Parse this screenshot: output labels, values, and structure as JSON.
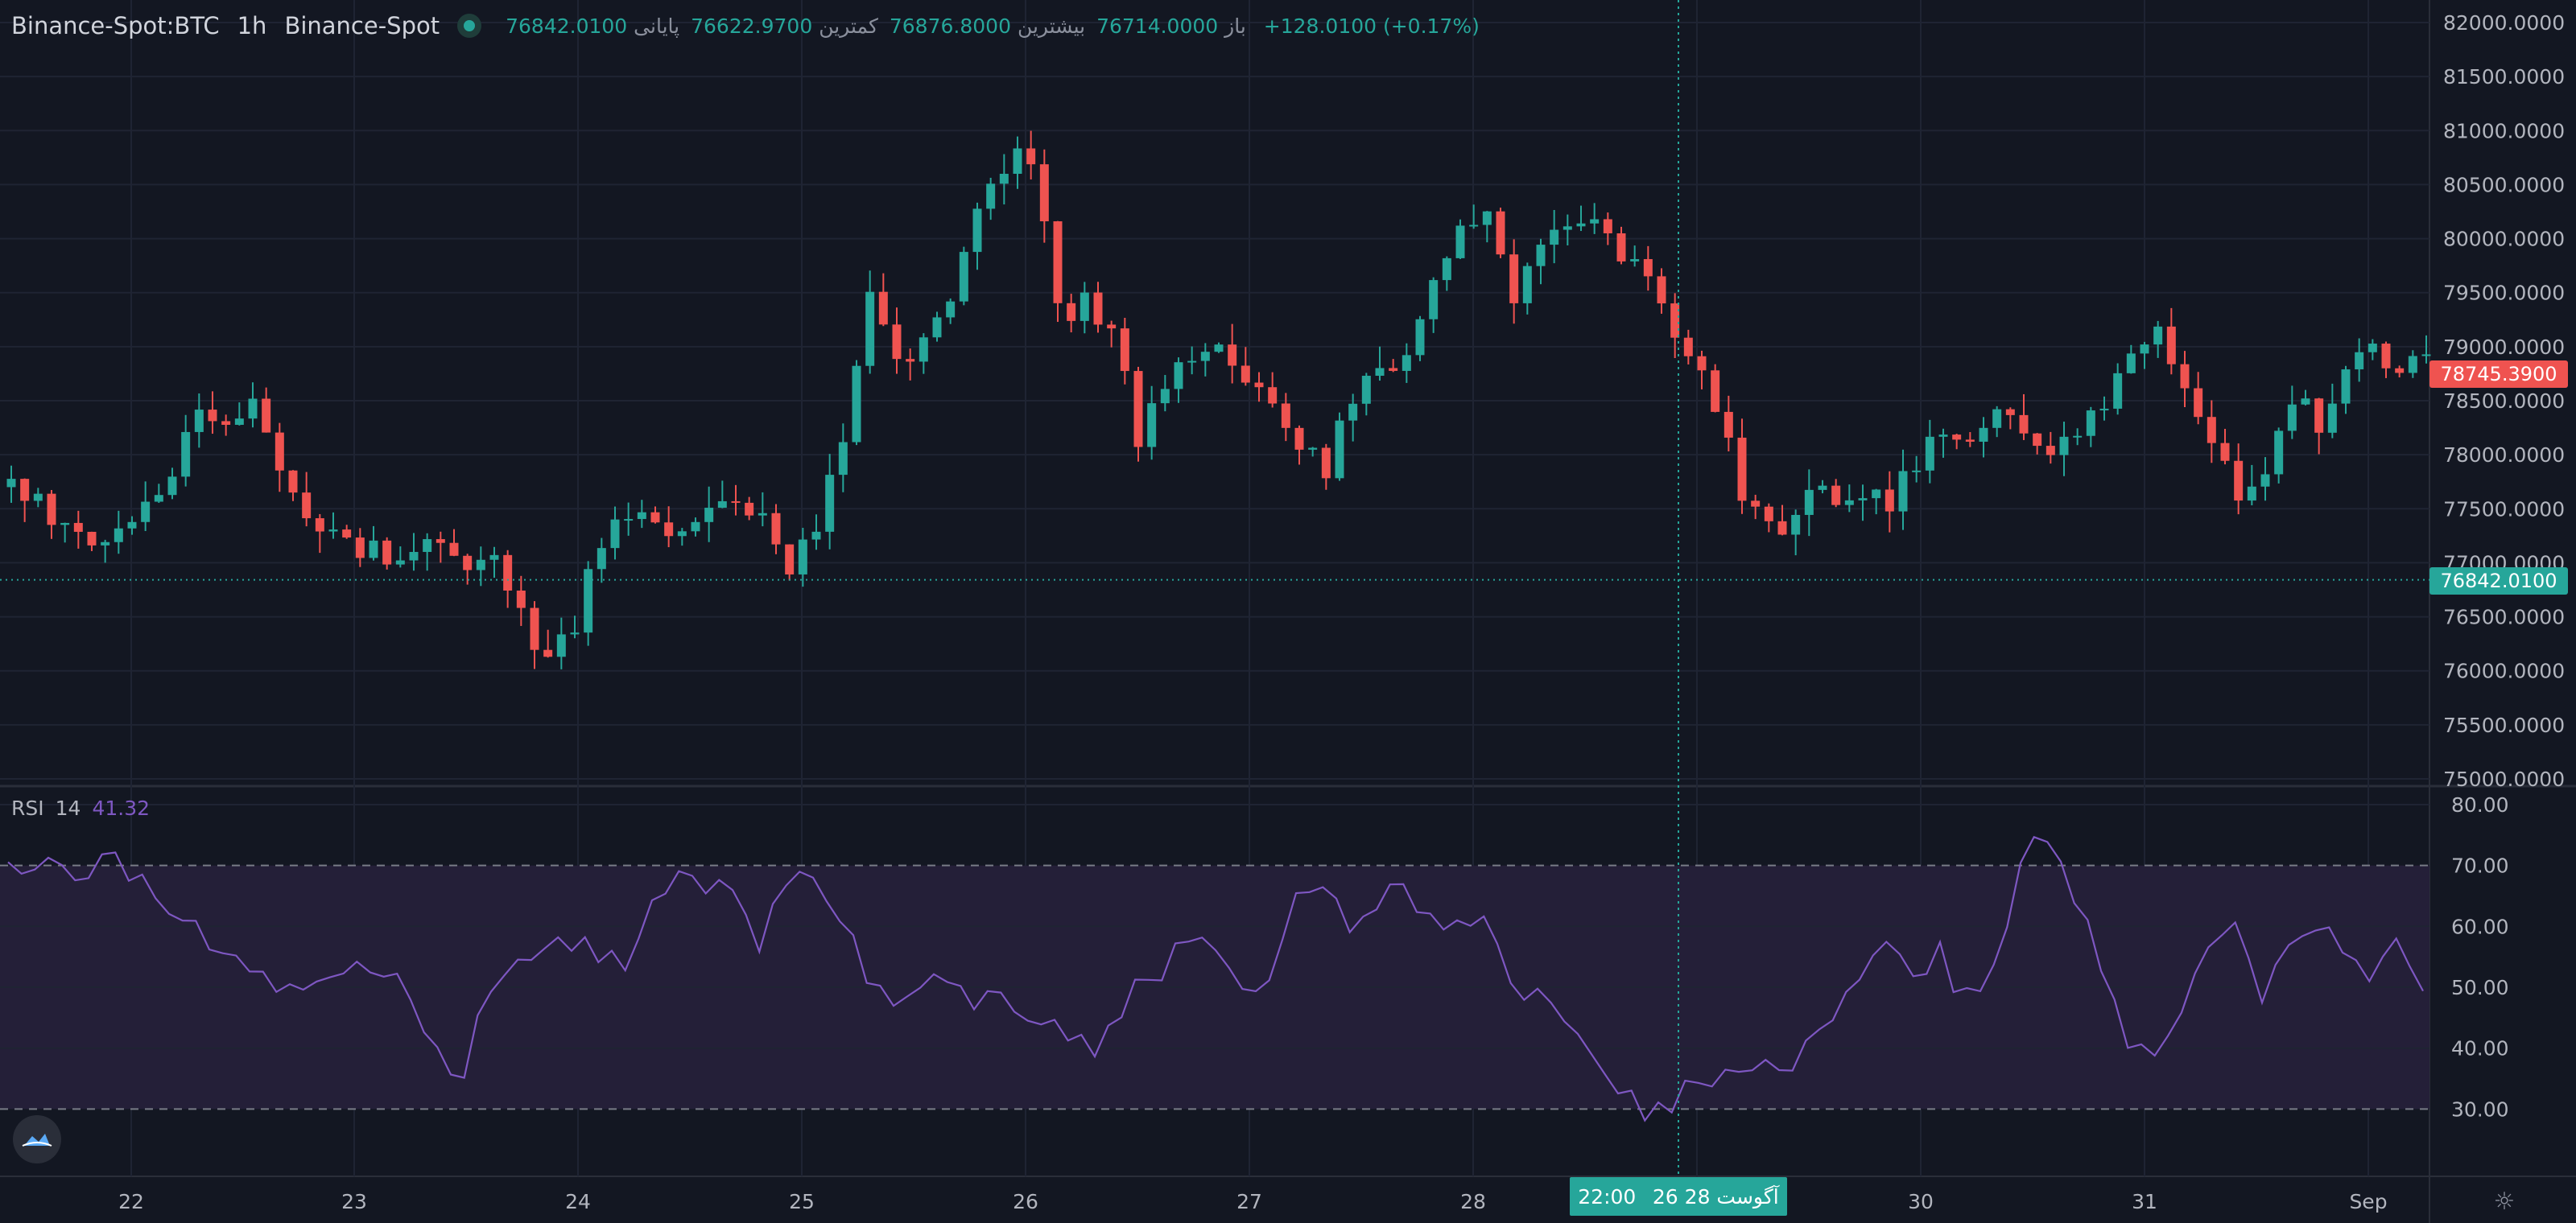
{
  "legend": {
    "symbol": "Binance-Spot:BTC",
    "interval": "1h",
    "exchange": "Binance-Spot",
    "status_dot": "live-status-dot",
    "open_label": "باز",
    "open": "76714.0000",
    "high_label": "بیشترین",
    "high": "76876.8000",
    "low_label": "کمترین",
    "low": "76622.9700",
    "close_label": "پایانی",
    "close": "76842.0100",
    "change": "+128.0100 (+0.17%)"
  },
  "rsi_legend": {
    "name": "RSI",
    "period": "14",
    "value": "41.32"
  },
  "price_tags": {
    "current": "78745.3900",
    "last": "76842.0100"
  },
  "crosshair": {
    "time": "22:00",
    "date": "26 آگوست 28"
  },
  "colors": {
    "up": "#26a69a",
    "down": "#ef5350",
    "rsi": "#7e57c2",
    "background": "#131722",
    "rsi_band": "#241f38"
  },
  "icons": {
    "logo": "tradingview-cloud-logo",
    "settings": "gear-icon"
  },
  "chart_data": [
    {
      "type": "candlestick",
      "title": "",
      "ylim": [
        75000,
        82000
      ],
      "y_ticks": [
        "75000.0000",
        "75500.0000",
        "76000.0000",
        "76500.0000",
        "77000.0000",
        "77500.0000",
        "78000.0000",
        "78500.0000",
        "79000.0000",
        "79500.0000",
        "80000.0000",
        "80500.0000",
        "81000.0000",
        "81500.0000",
        "82000.0000"
      ],
      "x_labels": [
        "22",
        "23",
        "24",
        "25",
        "26",
        "27",
        "28",
        "29",
        "30",
        "31",
        "Sep"
      ],
      "close_path": [
        [
          0,
          77700
        ],
        [
          6,
          77200
        ],
        [
          10,
          77500
        ],
        [
          14,
          78300
        ],
        [
          18,
          78450
        ],
        [
          20,
          77800
        ],
        [
          24,
          77200
        ],
        [
          28,
          77100
        ],
        [
          32,
          77200
        ],
        [
          34,
          76900
        ],
        [
          36,
          76950
        ],
        [
          38,
          76600
        ],
        [
          40,
          76000
        ],
        [
          42,
          76450
        ],
        [
          44,
          77200
        ],
        [
          46,
          77400
        ],
        [
          50,
          77300
        ],
        [
          54,
          77600
        ],
        [
          56,
          77400
        ],
        [
          58,
          76950
        ],
        [
          60,
          77300
        ],
        [
          62,
          78200
        ],
        [
          64,
          79400
        ],
        [
          66,
          78800
        ],
        [
          68,
          79000
        ],
        [
          70,
          79300
        ],
        [
          72,
          80400
        ],
        [
          74,
          80700
        ],
        [
          76,
          80800
        ],
        [
          78,
          79300
        ],
        [
          80,
          79400
        ],
        [
          82,
          79200
        ],
        [
          84,
          78100
        ],
        [
          86,
          78700
        ],
        [
          88,
          78900
        ],
        [
          90,
          79000
        ],
        [
          92,
          78700
        ],
        [
          94,
          78400
        ],
        [
          96,
          78100
        ],
        [
          98,
          77900
        ],
        [
          100,
          78500
        ],
        [
          102,
          78900
        ],
        [
          104,
          78800
        ],
        [
          106,
          79500
        ],
        [
          108,
          80000
        ],
        [
          110,
          80300
        ],
        [
          112,
          79500
        ],
        [
          114,
          79900
        ],
        [
          116,
          80200
        ],
        [
          118,
          80300
        ],
        [
          120,
          79800
        ],
        [
          122,
          79600
        ],
        [
          124,
          79100
        ],
        [
          126,
          78800
        ],
        [
          128,
          78200
        ],
        [
          129,
          77700
        ],
        [
          130,
          77500
        ],
        [
          132,
          77200
        ],
        [
          134,
          77800
        ],
        [
          136,
          77600
        ],
        [
          138,
          77500
        ],
        [
          140,
          77600
        ],
        [
          144,
          78200
        ],
        [
          148,
          78300
        ],
        [
          152,
          78100
        ],
        [
          156,
          78400
        ],
        [
          158,
          78900
        ],
        [
          160,
          79200
        ],
        [
          162,
          78700
        ],
        [
          164,
          78100
        ],
        [
          166,
          77600
        ],
        [
          168,
          77900
        ],
        [
          170,
          78500
        ],
        [
          172,
          78300
        ],
        [
          174,
          78800
        ],
        [
          176,
          79000
        ],
        [
          178,
          78700
        ],
        [
          180,
          78900
        ]
      ],
      "series": [
        {
          "name": "BTC"
        }
      ]
    },
    {
      "type": "line",
      "title": "RSI 14",
      "ylim": [
        20,
        80
      ],
      "y_ticks": [
        "30.00",
        "40.00",
        "50.00",
        "60.00",
        "70.00",
        "80.00"
      ],
      "levels": [
        30,
        70
      ],
      "path": [
        [
          0,
          72
        ],
        [
          4,
          68
        ],
        [
          8,
          71
        ],
        [
          12,
          62
        ],
        [
          16,
          55
        ],
        [
          20,
          50
        ],
        [
          24,
          52
        ],
        [
          28,
          52
        ],
        [
          30,
          48
        ],
        [
          32,
          40
        ],
        [
          34,
          36
        ],
        [
          36,
          50
        ],
        [
          38,
          57
        ],
        [
          40,
          55
        ],
        [
          42,
          58
        ],
        [
          44,
          56
        ],
        [
          46,
          52
        ],
        [
          48,
          64
        ],
        [
          50,
          70
        ],
        [
          52,
          64
        ],
        [
          54,
          67
        ],
        [
          56,
          58
        ],
        [
          58,
          67
        ],
        [
          60,
          70
        ],
        [
          62,
          61
        ],
        [
          64,
          52
        ],
        [
          66,
          48
        ],
        [
          68,
          50
        ],
        [
          70,
          52
        ],
        [
          72,
          46
        ],
        [
          74,
          48
        ],
        [
          76,
          47
        ],
        [
          78,
          44
        ],
        [
          80,
          40
        ],
        [
          82,
          42
        ],
        [
          84,
          50
        ],
        [
          86,
          53
        ],
        [
          88,
          58
        ],
        [
          90,
          54
        ],
        [
          92,
          50
        ],
        [
          94,
          52
        ],
        [
          96,
          65
        ],
        [
          98,
          68
        ],
        [
          100,
          58
        ],
        [
          102,
          63
        ],
        [
          104,
          66
        ],
        [
          106,
          62
        ],
        [
          108,
          60
        ],
        [
          110,
          63
        ],
        [
          112,
          51
        ],
        [
          114,
          48
        ],
        [
          116,
          46
        ],
        [
          118,
          40
        ],
        [
          120,
          34
        ],
        [
          122,
          30
        ],
        [
          124,
          28
        ],
        [
          125,
          34
        ],
        [
          126,
          35
        ],
        [
          128,
          34
        ],
        [
          130,
          35
        ],
        [
          134,
          39
        ],
        [
          136,
          47
        ],
        [
          138,
          52
        ],
        [
          140,
          55
        ],
        [
          142,
          52
        ],
        [
          144,
          55
        ],
        [
          146,
          48
        ],
        [
          148,
          53
        ],
        [
          150,
          70
        ],
        [
          152,
          76
        ],
        [
          154,
          66
        ],
        [
          156,
          53
        ],
        [
          158,
          42
        ],
        [
          160,
          38
        ],
        [
          162,
          46
        ],
        [
          164,
          55
        ],
        [
          166,
          60
        ],
        [
          168,
          48
        ],
        [
          170,
          58
        ],
        [
          172,
          60
        ],
        [
          174,
          58
        ],
        [
          176,
          52
        ],
        [
          178,
          60
        ],
        [
          180,
          51
        ]
      ],
      "series": [
        {
          "name": "RSI"
        }
      ]
    }
  ]
}
